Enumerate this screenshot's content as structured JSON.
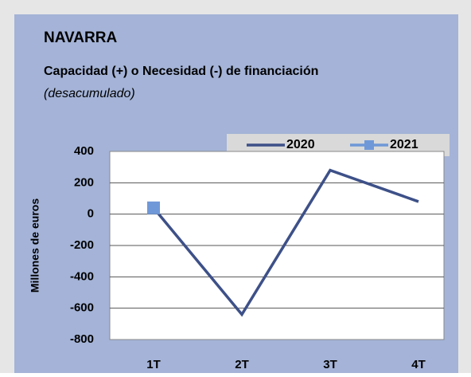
{
  "chart_data": {
    "type": "line",
    "title": "NAVARRA",
    "subtitle": "Capacidad (+) o Necesidad (-) de financiación",
    "note": "(desacumulado)",
    "y_label": "Millones de euros",
    "categories": [
      "1T",
      "2T",
      "3T",
      "4T"
    ],
    "series": [
      {
        "name": "2020",
        "color": "#3d5088",
        "values": [
          40,
          -640,
          280,
          80
        ]
      },
      {
        "name": "2021",
        "color": "#6f98d8",
        "values": [
          40,
          null,
          null,
          null
        ]
      }
    ],
    "ylim": [
      -800,
      400
    ],
    "yticks": [
      -800,
      -600,
      -400,
      -200,
      0,
      200,
      400
    ],
    "grid": true,
    "legend": "top"
  }
}
